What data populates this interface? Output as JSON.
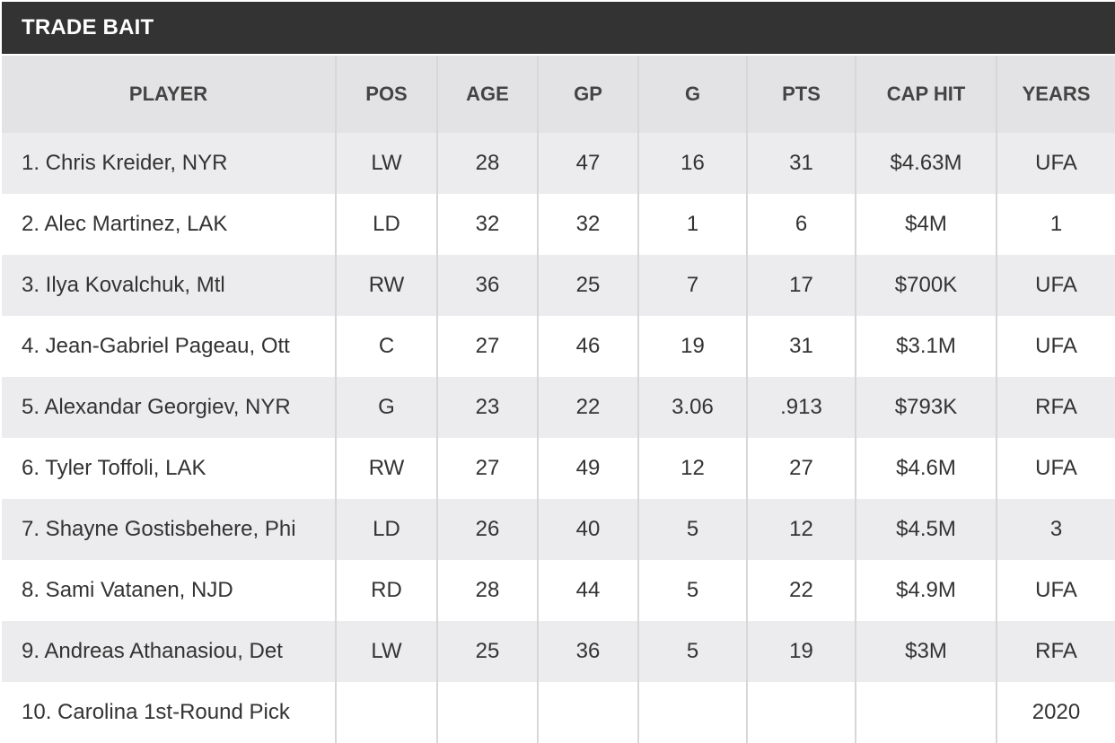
{
  "title": "TRADE BAIT",
  "columns": {
    "player": "PLAYER",
    "pos": "POS",
    "age": "AGE",
    "gp": "GP",
    "g": "G",
    "pts": "PTS",
    "cap_hit": "CAP HIT",
    "years": "YEARS"
  },
  "rows": [
    {
      "player": "1. Chris Kreider, NYR",
      "pos": "LW",
      "age": "28",
      "gp": "47",
      "g": "16",
      "pts": "31",
      "cap_hit": "$4.63M",
      "years": "UFA"
    },
    {
      "player": "2. Alec Martinez, LAK",
      "pos": "LD",
      "age": "32",
      "gp": "32",
      "g": "1",
      "pts": "6",
      "cap_hit": "$4M",
      "years": "1"
    },
    {
      "player": "3. Ilya Kovalchuk, Mtl",
      "pos": "RW",
      "age": "36",
      "gp": "25",
      "g": "7",
      "pts": "17",
      "cap_hit": "$700K",
      "years": "UFA"
    },
    {
      "player": "4. Jean-Gabriel Pageau, Ott",
      "pos": "C",
      "age": "27",
      "gp": "46",
      "g": "19",
      "pts": "31",
      "cap_hit": "$3.1M",
      "years": "UFA"
    },
    {
      "player": "5. Alexandar Georgiev, NYR",
      "pos": "G",
      "age": "23",
      "gp": "22",
      "g": "3.06",
      "pts": ".913",
      "cap_hit": "$793K",
      "years": "RFA"
    },
    {
      "player": "6. Tyler Toffoli, LAK",
      "pos": "RW",
      "age": "27",
      "gp": "49",
      "g": "12",
      "pts": "27",
      "cap_hit": "$4.6M",
      "years": "UFA"
    },
    {
      "player": "7. Shayne Gostisbehere, Phi",
      "pos": "LD",
      "age": "26",
      "gp": "40",
      "g": "5",
      "pts": "12",
      "cap_hit": "$4.5M",
      "years": "3"
    },
    {
      "player": "8. Sami Vatanen, NJD",
      "pos": "RD",
      "age": "28",
      "gp": "44",
      "g": "5",
      "pts": "22",
      "cap_hit": "$4.9M",
      "years": "UFA"
    },
    {
      "player": "9. Andreas Athanasiou, Det",
      "pos": "LW",
      "age": "25",
      "gp": "36",
      "g": "5",
      "pts": "19",
      "cap_hit": "$3M",
      "years": "RFA"
    },
    {
      "player": "10. Carolina 1st-Round Pick",
      "pos": "",
      "age": "",
      "gp": "",
      "g": "",
      "pts": "",
      "cap_hit": "",
      "years": "2020"
    }
  ]
}
